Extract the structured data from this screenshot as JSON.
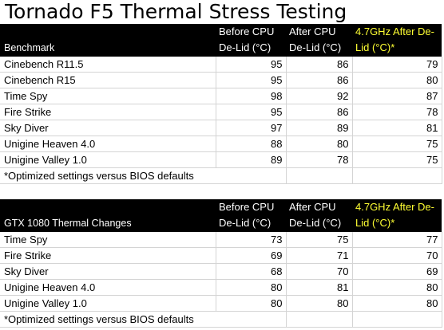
{
  "title": "Tornado F5 Thermal Stress Testing",
  "cpu_table": {
    "headers": [
      "Benchmark",
      "Before CPU De-Lid (°C)",
      "After CPU De-Lid (°C)",
      "4.7GHz After De-Lid (°C)*"
    ],
    "rows": [
      {
        "name": "Cinebench R11.5",
        "before": "95",
        "after": "86",
        "oc": "79"
      },
      {
        "name": "Cinebench R15",
        "before": "95",
        "after": "86",
        "oc": "80"
      },
      {
        "name": "Time Spy",
        "before": "98",
        "after": "92",
        "oc": "87"
      },
      {
        "name": "Fire Strike",
        "before": "95",
        "after": "86",
        "oc": "78"
      },
      {
        "name": "Sky Diver",
        "before": "97",
        "after": "89",
        "oc": "81"
      },
      {
        "name": "Unigine Heaven 4.0",
        "before": "88",
        "after": "80",
        "oc": "75"
      },
      {
        "name": "Unigine Valley 1.0",
        "before": "89",
        "after": "78",
        "oc": "75"
      }
    ],
    "footnote": "*Optimized settings versus BIOS defaults"
  },
  "gpu_table": {
    "headers": [
      "GTX 1080 Thermal Changes",
      "Before CPU De-Lid (°C)",
      "After CPU De-Lid (°C)",
      "4.7GHz After De-Lid (°C)*"
    ],
    "rows": [
      {
        "name": "Time Spy",
        "before": "73",
        "after": "75",
        "oc": "77"
      },
      {
        "name": "Fire Strike",
        "before": "69",
        "after": "71",
        "oc": "70"
      },
      {
        "name": "Sky Diver",
        "before": "68",
        "after": "70",
        "oc": "69"
      },
      {
        "name": "Unigine Heaven 4.0",
        "before": "80",
        "after": "81",
        "oc": "80"
      },
      {
        "name": "Unigine Valley 1.0",
        "before": "80",
        "after": "80",
        "oc": "80"
      }
    ],
    "footnote": "*Optimized settings versus BIOS defaults"
  },
  "colors": {
    "header_background": "#000000",
    "header_text": "#ffffff",
    "accent_header_text": "#ffff33"
  }
}
